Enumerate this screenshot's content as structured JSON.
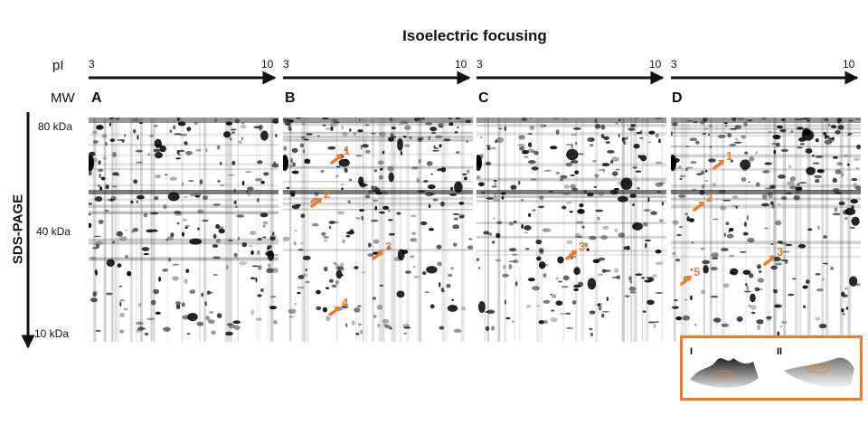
{
  "figure": {
    "title": "Isoelectric focusing",
    "pi_label": "pI",
    "mw_label": "MW",
    "sds_label": "SDS-PAGE",
    "ph_ticks": [
      {
        "start": "3",
        "end": "10"
      },
      {
        "start": "3",
        "end": "10"
      },
      {
        "start": "3",
        "end": "10"
      },
      {
        "start": "3",
        "end": "10"
      }
    ],
    "mw_ticks": [
      "80 kDa",
      "40 kDa",
      "10 kDa"
    ],
    "panels": [
      {
        "letter": "A",
        "markers": []
      },
      {
        "letter": "B",
        "markers": [
          "1",
          "2",
          "3",
          "4"
        ]
      },
      {
        "letter": "C",
        "markers": [
          "3"
        ]
      },
      {
        "letter": "D",
        "markers": [
          "1",
          "2",
          "3",
          "5"
        ]
      }
    ],
    "inset": {
      "labels": [
        "I",
        "II"
      ],
      "border_color": "#f07a2a"
    },
    "colors": {
      "accent": "#f07a2a",
      "spot": "#111111"
    }
  }
}
